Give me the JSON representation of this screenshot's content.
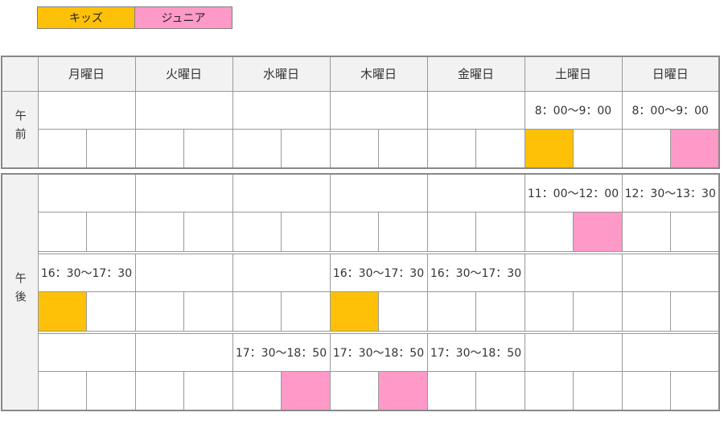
{
  "legend": {
    "items": [
      {
        "key": "kids",
        "label": "キッズ"
      },
      {
        "key": "junior",
        "label": "ジュニア"
      }
    ]
  },
  "colors": {
    "kids": "#FFC107",
    "junior": "#FF99C8",
    "header_bg": "#F2F2F2",
    "border": "#999999"
  },
  "days": [
    "月曜日",
    "火曜日",
    "水曜日",
    "木曜日",
    "金曜日",
    "土曜日",
    "日曜日"
  ],
  "sections": {
    "morning": {
      "label": "午前",
      "blocks": [
        {
          "times": [
            "",
            "",
            "",
            "",
            "",
            "8：00～9：00",
            "8：00～9：00"
          ],
          "cells": [
            "",
            "",
            "",
            "",
            "",
            "",
            "",
            "",
            "",
            "",
            "kids",
            "",
            "",
            "junior"
          ]
        }
      ]
    },
    "afternoon": {
      "label": "午後",
      "blocks": [
        {
          "times": [
            "",
            "",
            "",
            "",
            "",
            "11：00～12：00",
            "12：30～13：30"
          ],
          "cells": [
            "",
            "",
            "",
            "",
            "",
            "",
            "",
            "",
            "",
            "",
            "",
            "junior",
            "",
            ""
          ]
        },
        {
          "times": [
            "16：30～17：30",
            "",
            "",
            "16：30～17：30",
            "16：30～17：30",
            "",
            ""
          ],
          "cells": [
            "kids",
            "",
            "",
            "",
            "",
            "",
            "kids",
            "",
            "",
            "",
            "",
            "",
            "",
            ""
          ]
        },
        {
          "times": [
            "",
            "",
            "17：30～18：50",
            "17：30～18：50",
            "17：30～18：50",
            "",
            ""
          ],
          "cells": [
            "",
            "",
            "",
            "",
            "",
            "junior",
            "",
            "junior",
            "",
            "",
            "",
            "",
            "",
            ""
          ]
        }
      ]
    }
  }
}
